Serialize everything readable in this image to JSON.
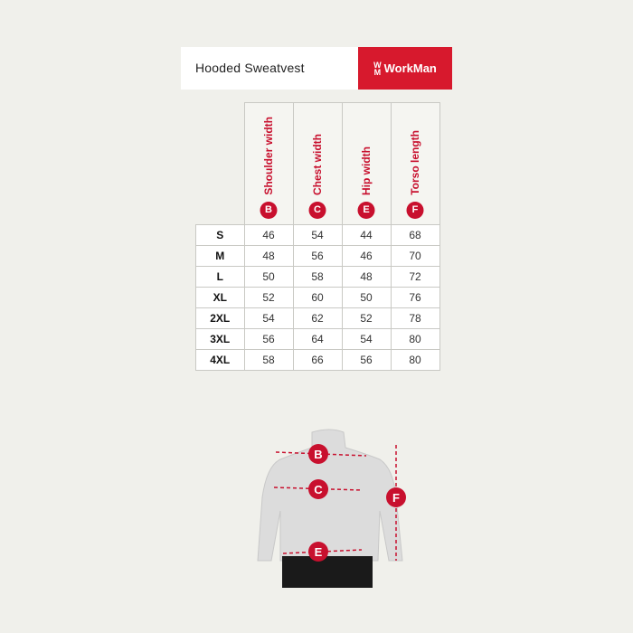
{
  "header": {
    "title": "Hooded Sweatvest",
    "brand": "WorkMan",
    "brand_color": "#d7192d"
  },
  "table": {
    "columns": [
      {
        "badge": "B",
        "label": "Shoulder width"
      },
      {
        "badge": "C",
        "label": "Chest width"
      },
      {
        "badge": "E",
        "label": "Hip width"
      },
      {
        "badge": "F",
        "label": "Torso length"
      }
    ],
    "rows": [
      {
        "size": "S",
        "values": [
          "46",
          "54",
          "44",
          "68"
        ]
      },
      {
        "size": "M",
        "values": [
          "48",
          "56",
          "46",
          "70"
        ]
      },
      {
        "size": "L",
        "values": [
          "50",
          "58",
          "48",
          "72"
        ]
      },
      {
        "size": "XL",
        "values": [
          "52",
          "60",
          "50",
          "76"
        ]
      },
      {
        "size": "2XL",
        "values": [
          "54",
          "62",
          "52",
          "78"
        ]
      },
      {
        "size": "3XL",
        "values": [
          "56",
          "64",
          "54",
          "80"
        ]
      },
      {
        "size": "4XL",
        "values": [
          "58",
          "66",
          "56",
          "80"
        ]
      }
    ]
  },
  "figure": {
    "markers": [
      "B",
      "C",
      "E",
      "F"
    ],
    "accent": "#c8102e"
  }
}
